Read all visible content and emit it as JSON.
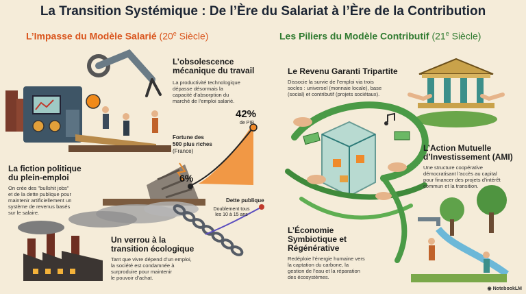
{
  "title": "La Transition Systémique : De l’Ère du Salariat à l’Ère de la Contribution",
  "left": {
    "heading_name": "L’Impasse du Modèle Salarié",
    "heading_century": "(20",
    "heading_sup": "e",
    "heading_end": " Siècle)",
    "blocks": [
      {
        "title_l1": "L’obsolescence",
        "title_l2": "mécanique du travail",
        "text": [
          "La productivité technologique",
          "dépasse désormais la",
          "capacité d’absorption du",
          "marché de l’emploi salarié."
        ]
      },
      {
        "title_l1": "La fiction politique",
        "title_l2": "du plein-emploi",
        "text": [
          "On crée des \"bullshit jobs\"",
          "et de la dette publique pour",
          "maintenir artificiellement un",
          "système de revenus basés",
          "sur le salaire."
        ]
      },
      {
        "title_l1": "Un verrou à la",
        "title_l2": "transition écologique",
        "text": [
          "Tant que vivre dépend d’un emploi,",
          "la société est condamnée à",
          "surproduire pour maintenir",
          "le pouvoir d’achat."
        ]
      }
    ],
    "chart": {
      "fortune_label": [
        "Fortune des",
        "500 plus riches"
      ],
      "fortune_sub": "(France)",
      "start_value": "6%",
      "end_value": "42%",
      "end_unit": "de PIB",
      "debt_label": "Dette publique",
      "debt_note": [
        "Doublement tous",
        "les 10 à 15 ans"
      ]
    }
  },
  "right": {
    "heading_name": "Les Piliers du Modèle Contributif",
    "heading_century": "(21",
    "heading_sup": "e",
    "heading_end": " Siècle)",
    "blocks": [
      {
        "title_l1": "Le Revenu Garanti Tripartite",
        "title_l2": "",
        "text": [
          "Dissocie la survie de l’emploi via trois",
          "socles : universel (monnaie locale), base",
          "(social) et contributif (projets sociétaux)."
        ]
      },
      {
        "title_l1": "L’Action Mutuelle",
        "title_l2": "d’Investissement (AMI)",
        "text": [
          "Une structure coopérative",
          "démocratisant l’accès au capital",
          "pour financer des projets d’intérêt",
          "commun et la transition."
        ]
      },
      {
        "title_l1": "L’Économie",
        "title_l2": "Symbiotique et",
        "title_l3": "Régénérative",
        "text": [
          "Redéploie l’énergie humaine vers",
          "la captation du carbone, la",
          "gestion de l’eau et la réparation",
          "des écosystèmes."
        ]
      }
    ]
  },
  "footer": {
    "brand": "NotebookLM"
  }
}
